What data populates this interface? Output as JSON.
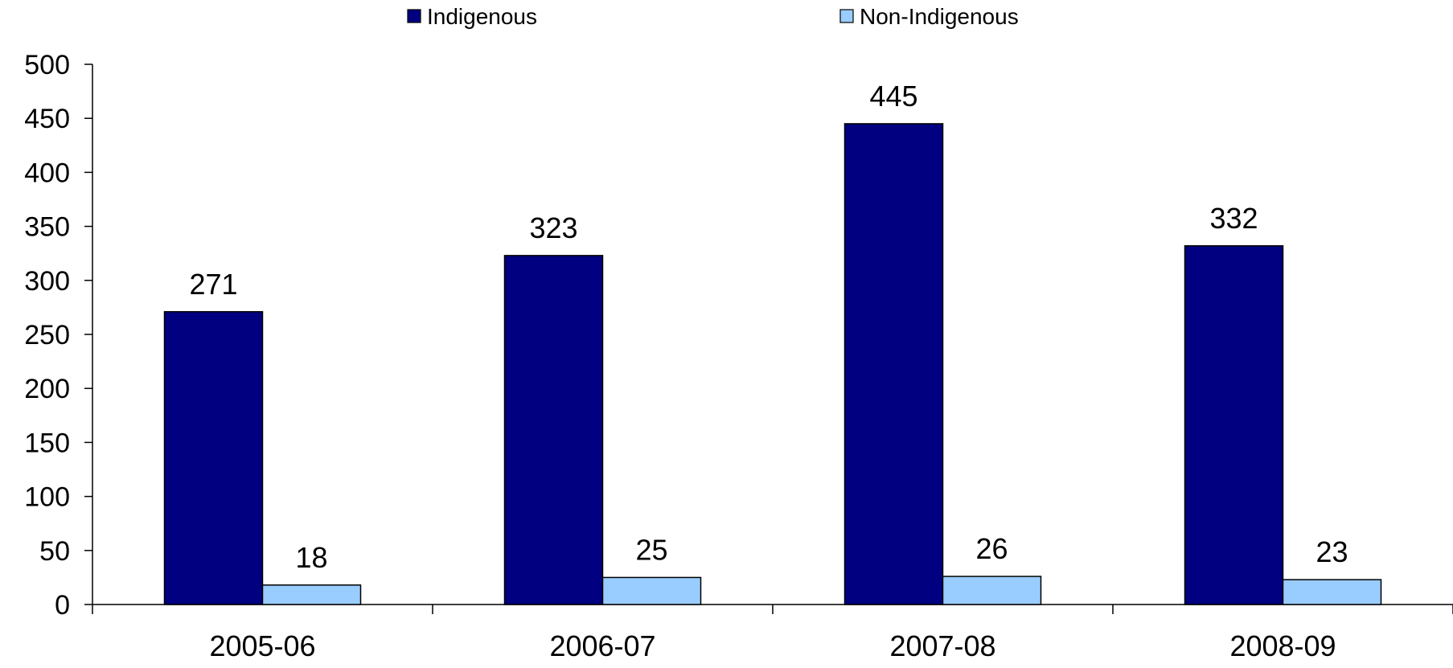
{
  "chart_data": {
    "type": "bar",
    "categories": [
      "2005-06",
      "2006-07",
      "2007-08",
      "2008-09"
    ],
    "series": [
      {
        "name": "Indigenous",
        "values": [
          271,
          323,
          445,
          332
        ],
        "color": "#000080"
      },
      {
        "name": "Non-Indigenous",
        "values": [
          18,
          25,
          26,
          23
        ],
        "color": "#99CCFF"
      }
    ],
    "ylim": [
      0,
      500
    ],
    "yticks": [
      0,
      50,
      100,
      150,
      200,
      250,
      300,
      350,
      400,
      450,
      500
    ],
    "data_labels": true,
    "legend": "top-center",
    "grid": false,
    "title": "",
    "xlabel": "",
    "ylabel": ""
  }
}
